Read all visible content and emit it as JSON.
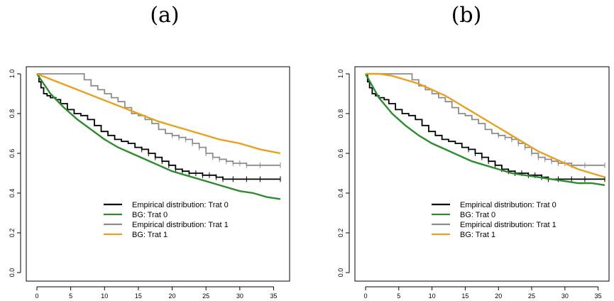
{
  "panels": [
    {
      "title": "(a)"
    },
    {
      "title": "(b)"
    }
  ],
  "chart_data": [
    {
      "type": "line",
      "title": "(a)",
      "xlabel": "",
      "ylabel": "",
      "xlim": [
        0,
        36
      ],
      "ylim": [
        0,
        1
      ],
      "x_ticks": [
        0,
        5,
        10,
        15,
        20,
        25,
        30,
        35
      ],
      "y_ticks": [
        0.0,
        0.2,
        0.4,
        0.6,
        0.8,
        1.0
      ],
      "y_tick_labels": [
        "0.0",
        "0.2",
        "0.4",
        "0.6",
        "0.8",
        "1.0"
      ],
      "legend_position": "center-bottom",
      "series": [
        {
          "name": "Empirical distribution: Trat 0",
          "color": "#000000",
          "step": true,
          "x": [
            0,
            0.3,
            0.6,
            1.0,
            1.5,
            2.0,
            2.8,
            3.5,
            4.5,
            5.5,
            6.5,
            7.5,
            8.5,
            9.5,
            10.5,
            11.5,
            12.5,
            13.5,
            14.5,
            15.5,
            16.5,
            17.5,
            18.5,
            19.5,
            20.5,
            21.5,
            22.5,
            23.5,
            24.5,
            25.5,
            26.5,
            27.5,
            29,
            31,
            33,
            36
          ],
          "y": [
            1.0,
            0.96,
            0.93,
            0.9,
            0.89,
            0.88,
            0.87,
            0.85,
            0.82,
            0.8,
            0.79,
            0.77,
            0.74,
            0.71,
            0.69,
            0.67,
            0.66,
            0.65,
            0.63,
            0.62,
            0.6,
            0.58,
            0.56,
            0.54,
            0.52,
            0.51,
            0.5,
            0.5,
            0.49,
            0.49,
            0.48,
            0.47,
            0.47,
            0.47,
            0.47,
            0.47
          ]
        },
        {
          "name": "BG: Trat 0",
          "color": "#2e8b2e",
          "x": [
            0,
            2,
            4,
            6,
            8,
            10,
            12,
            14,
            16,
            18,
            20,
            22,
            24,
            26,
            28,
            30,
            32,
            34,
            36
          ],
          "y": [
            1.0,
            0.9,
            0.83,
            0.77,
            0.72,
            0.67,
            0.63,
            0.6,
            0.57,
            0.54,
            0.51,
            0.49,
            0.47,
            0.45,
            0.43,
            0.41,
            0.4,
            0.38,
            0.37
          ]
        },
        {
          "name": "Empirical distribution: Trat 1",
          "color": "#8c8c8c",
          "step": true,
          "x": [
            0,
            6,
            7,
            8,
            9,
            10,
            11,
            12,
            13,
            14,
            15,
            16,
            17,
            18,
            19,
            20,
            21,
            22,
            23,
            24,
            25,
            26,
            27,
            28,
            29,
            30,
            31,
            33,
            36
          ],
          "y": [
            1.0,
            1.0,
            0.97,
            0.94,
            0.92,
            0.9,
            0.88,
            0.86,
            0.83,
            0.8,
            0.79,
            0.77,
            0.75,
            0.72,
            0.7,
            0.69,
            0.68,
            0.67,
            0.65,
            0.63,
            0.6,
            0.58,
            0.57,
            0.56,
            0.55,
            0.55,
            0.54,
            0.54,
            0.54
          ]
        },
        {
          "name": "BG: Trat 1",
          "color": "#e8a020",
          "x": [
            0,
            3,
            6,
            9,
            12,
            15,
            18,
            21,
            24,
            27,
            30,
            33,
            36
          ],
          "y": [
            1.0,
            0.96,
            0.92,
            0.88,
            0.84,
            0.8,
            0.76,
            0.73,
            0.7,
            0.67,
            0.65,
            0.62,
            0.6
          ]
        }
      ]
    },
    {
      "type": "line",
      "title": "(b)",
      "xlabel": "",
      "ylabel": "",
      "xlim": [
        0,
        36
      ],
      "ylim": [
        0,
        1
      ],
      "x_ticks": [
        0,
        5,
        10,
        15,
        20,
        25,
        30,
        35
      ],
      "y_ticks": [
        0.0,
        0.2,
        0.4,
        0.6,
        0.8,
        1.0
      ],
      "y_tick_labels": [
        "0.0",
        "0.2",
        "0.4",
        "0.6",
        "0.8",
        "1.0"
      ],
      "legend_position": "center-bottom",
      "series": [
        {
          "name": "Empirical distribution: Trat 0",
          "color": "#000000",
          "step": true,
          "x": [
            0,
            0.3,
            0.6,
            1.0,
            1.5,
            2.0,
            2.8,
            3.5,
            4.5,
            5.5,
            6.5,
            7.5,
            8.5,
            9.5,
            10.5,
            11.5,
            12.5,
            13.5,
            14.5,
            15.5,
            16.5,
            17.5,
            18.5,
            19.5,
            20.5,
            21.5,
            22.5,
            23.5,
            24.5,
            25.5,
            26.5,
            27.5,
            29,
            31,
            33,
            36
          ],
          "y": [
            1.0,
            0.96,
            0.93,
            0.9,
            0.89,
            0.88,
            0.87,
            0.85,
            0.82,
            0.8,
            0.79,
            0.77,
            0.74,
            0.71,
            0.69,
            0.67,
            0.66,
            0.65,
            0.63,
            0.62,
            0.6,
            0.58,
            0.56,
            0.54,
            0.52,
            0.51,
            0.5,
            0.5,
            0.49,
            0.49,
            0.48,
            0.47,
            0.47,
            0.47,
            0.47,
            0.47
          ]
        },
        {
          "name": "BG: Trat 0",
          "color": "#2e8b2e",
          "x": [
            0,
            2,
            4,
            6,
            8,
            10,
            12,
            14,
            16,
            18,
            20,
            22,
            24,
            26,
            28,
            30,
            32,
            34,
            36
          ],
          "y": [
            1.0,
            0.88,
            0.8,
            0.74,
            0.69,
            0.65,
            0.62,
            0.59,
            0.56,
            0.54,
            0.52,
            0.5,
            0.49,
            0.48,
            0.47,
            0.46,
            0.45,
            0.45,
            0.44
          ]
        },
        {
          "name": "Empirical distribution: Trat 1",
          "color": "#8c8c8c",
          "step": true,
          "x": [
            0,
            6,
            7,
            8,
            9,
            10,
            11,
            12,
            13,
            14,
            15,
            16,
            17,
            18,
            19,
            20,
            21,
            22,
            23,
            24,
            25,
            26,
            27,
            28,
            29,
            30,
            31,
            33,
            36
          ],
          "y": [
            1.0,
            1.0,
            0.97,
            0.94,
            0.92,
            0.9,
            0.88,
            0.86,
            0.83,
            0.8,
            0.79,
            0.77,
            0.75,
            0.72,
            0.7,
            0.69,
            0.68,
            0.67,
            0.65,
            0.63,
            0.6,
            0.58,
            0.57,
            0.56,
            0.55,
            0.55,
            0.54,
            0.54,
            0.54
          ]
        },
        {
          "name": "BG: Trat 1",
          "color": "#e8a020",
          "x": [
            0,
            2,
            4,
            6,
            8,
            10,
            12,
            14,
            16,
            18,
            20,
            22,
            24,
            26,
            28,
            30,
            32,
            34,
            36
          ],
          "y": [
            1.0,
            1.0,
            0.99,
            0.97,
            0.95,
            0.92,
            0.89,
            0.85,
            0.81,
            0.77,
            0.73,
            0.69,
            0.65,
            0.61,
            0.58,
            0.55,
            0.52,
            0.5,
            0.48
          ]
        }
      ]
    }
  ]
}
